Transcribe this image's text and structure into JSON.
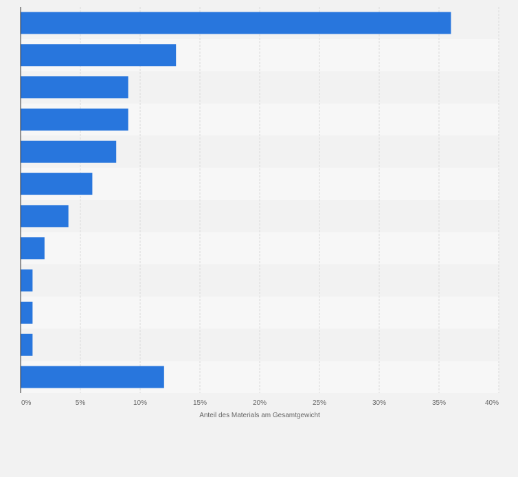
{
  "chart_data": {
    "type": "bar",
    "orientation": "horizontal",
    "categories": [
      "",
      "",
      "",
      "",
      "",
      "",
      "",
      "",
      "",
      "",
      "",
      ""
    ],
    "values": [
      36,
      13,
      9,
      9,
      8,
      6,
      4,
      2,
      1,
      1,
      1,
      12
    ],
    "xlabel": "Anteil des Materials am Gesamtgewicht",
    "xlim": [
      0,
      40
    ],
    "x_ticks": [
      "0%",
      "5%",
      "10%",
      "15%",
      "20%",
      "25%",
      "30%",
      "35%",
      "40%"
    ],
    "grid": true,
    "legend": "none",
    "colors": {
      "bar": "#2876dd",
      "band_dark": "#f2f2f2",
      "band_light": "#f7f7f7",
      "grid": "#d9d9d9",
      "axis": "#333333",
      "tick_text": "#666666"
    }
  }
}
